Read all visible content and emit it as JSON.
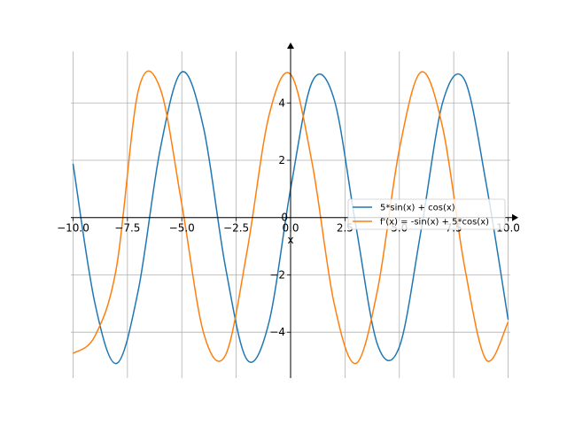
{
  "chart_data": {
    "type": "line",
    "title": "",
    "xlabel": "x",
    "ylabel": "",
    "xlim": [
      -10.1,
      10.1
    ],
    "ylim": [
      -5.6,
      5.8
    ],
    "grid": true,
    "legend_position": "center-right",
    "x_ticks": [
      -10.0,
      -7.5,
      -5.0,
      -2.5,
      0.0,
      2.5,
      5.0,
      7.5,
      10.0
    ],
    "x_tick_labels": [
      "−10.0",
      "−7.5",
      "−5.0",
      "−2.5",
      "0.0",
      "2.5",
      "5.0",
      "7.5",
      "10.0"
    ],
    "y_ticks": [
      -4,
      -2,
      0,
      2,
      4
    ],
    "y_tick_labels": [
      "−4",
      "−2",
      "0",
      "2",
      "4"
    ],
    "series": [
      {
        "name": "5*sin(x) + cos(x)",
        "color": "#1f77b4",
        "x": [
          -10,
          -9,
          -8,
          -7,
          -6,
          -5,
          -4,
          -3,
          -2,
          -1,
          0,
          1,
          2,
          3,
          4,
          5,
          6,
          7,
          8,
          9,
          10
        ],
        "y": [
          1.88,
          -2.97,
          -5.09,
          -2.53,
          2.36,
          5.08,
          3.13,
          -1.7,
          -4.96,
          -3.67,
          1.0,
          4.75,
          4.13,
          -0.28,
          -4.44,
          -4.51,
          -0.44,
          4.04,
          4.8,
          1.15,
          -3.56
        ]
      },
      {
        "name": "f'(x) = -sin(x) + 5*cos(x)",
        "color": "#ff7f0e",
        "x": [
          -10,
          -9,
          -8,
          -7,
          -6,
          -5,
          -4,
          -3,
          -2,
          -1,
          0,
          1,
          2,
          3,
          4,
          5,
          6,
          7,
          8,
          9,
          10
        ],
        "y": [
          -4.74,
          -4.14,
          -1.72,
          4.43,
          4.52,
          0.46,
          -4.02,
          -4.81,
          -1.17,
          3.54,
          5.0,
          1.86,
          -2.99,
          -5.09,
          -2.51,
          2.38,
          5.08,
          3.11,
          -1.72,
          -4.97,
          -3.65
        ]
      }
    ]
  }
}
